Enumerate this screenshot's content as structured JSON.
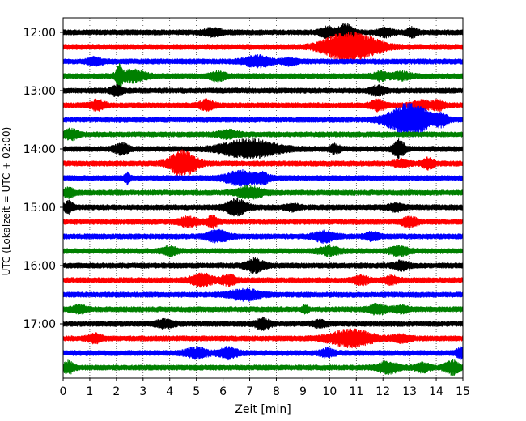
{
  "chart_data": {
    "type": "line",
    "title": "",
    "xlabel": "Zeit  [min]",
    "ylabel": "UTC (Lokalzeit = UTC + 02:00)",
    "xlim": [
      0,
      15
    ],
    "x_ticks": [
      "0",
      "1",
      "2",
      "3",
      "4",
      "5",
      "6",
      "7",
      "8",
      "9",
      "10",
      "11",
      "12",
      "13",
      "14",
      "15"
    ],
    "y_tick_labels": [
      "12:00",
      "13:00",
      "14:00",
      "15:00",
      "16:00",
      "17:00"
    ],
    "y_tick_rows": [
      0,
      4,
      8,
      12,
      16,
      20
    ],
    "grid": "vertical dotted at each minute",
    "trace_minutes": 15,
    "rows_per_hour": 4,
    "colors": [
      "#000000",
      "#ff0000",
      "#0000ff",
      "#008000"
    ],
    "traces": [
      {
        "start": "12:00",
        "color": "#000000",
        "events": [
          {
            "t": 5.6,
            "a": 0.35,
            "w": 0.25
          },
          {
            "t": 9.9,
            "a": 0.5,
            "w": 0.2
          },
          {
            "t": 10.6,
            "a": 0.9,
            "w": 0.2
          },
          {
            "t": 12.1,
            "a": 0.4,
            "w": 0.2
          },
          {
            "t": 13.1,
            "a": 0.45,
            "w": 0.15
          }
        ]
      },
      {
        "start": "12:15",
        "color": "#ff0000",
        "events": [
          {
            "t": 10.6,
            "a": 1.6,
            "w": 0.6
          },
          {
            "t": 11.6,
            "a": 0.5,
            "w": 0.4
          }
        ]
      },
      {
        "start": "12:30",
        "color": "#0000ff",
        "events": [
          {
            "t": 1.2,
            "a": 0.35,
            "w": 0.2
          },
          {
            "t": 7.3,
            "a": 0.55,
            "w": 0.35
          },
          {
            "t": 8.5,
            "a": 0.3,
            "w": 0.2
          }
        ]
      },
      {
        "start": "12:45",
        "color": "#008000",
        "events": [
          {
            "t": 2.1,
            "a": 1.3,
            "w": 0.08
          },
          {
            "t": 2.6,
            "a": 0.6,
            "w": 0.35
          },
          {
            "t": 5.8,
            "a": 0.45,
            "w": 0.2
          },
          {
            "t": 11.9,
            "a": 0.4,
            "w": 0.2
          },
          {
            "t": 12.7,
            "a": 0.35,
            "w": 0.25
          }
        ]
      },
      {
        "start": "13:00",
        "color": "#000000",
        "events": [
          {
            "t": 2.0,
            "a": 0.5,
            "w": 0.15
          },
          {
            "t": 11.8,
            "a": 0.45,
            "w": 0.2
          }
        ]
      },
      {
        "start": "13:15",
        "color": "#ff0000",
        "events": [
          {
            "t": 1.3,
            "a": 0.5,
            "w": 0.2
          },
          {
            "t": 5.4,
            "a": 0.5,
            "w": 0.2
          },
          {
            "t": 11.8,
            "a": 0.5,
            "w": 0.2
          },
          {
            "t": 13.5,
            "a": 0.4,
            "w": 0.3
          },
          {
            "t": 14.1,
            "a": 0.45,
            "w": 0.15
          }
        ]
      },
      {
        "start": "13:30",
        "color": "#0000ff",
        "events": [
          {
            "t": 13.0,
            "a": 1.9,
            "w": 0.55
          },
          {
            "t": 14.2,
            "a": 0.6,
            "w": 0.15
          }
        ]
      },
      {
        "start": "13:45",
        "color": "#008000",
        "events": [
          {
            "t": 0.3,
            "a": 0.5,
            "w": 0.2
          },
          {
            "t": 6.2,
            "a": 0.35,
            "w": 0.3
          }
        ]
      },
      {
        "start": "14:00",
        "color": "#000000",
        "events": [
          {
            "t": 2.2,
            "a": 0.55,
            "w": 0.2
          },
          {
            "t": 7.0,
            "a": 1.0,
            "w": 0.75
          },
          {
            "t": 10.2,
            "a": 0.4,
            "w": 0.15
          },
          {
            "t": 12.6,
            "a": 1.0,
            "w": 0.15
          }
        ]
      },
      {
        "start": "14:15",
        "color": "#ff0000",
        "events": [
          {
            "t": 4.5,
            "a": 1.45,
            "w": 0.35
          },
          {
            "t": 12.7,
            "a": 0.35,
            "w": 0.2
          },
          {
            "t": 13.7,
            "a": 0.55,
            "w": 0.15
          }
        ]
      },
      {
        "start": "14:30",
        "color": "#0000ff",
        "events": [
          {
            "t": 2.4,
            "a": 0.6,
            "w": 0.07
          },
          {
            "t": 6.7,
            "a": 0.75,
            "w": 0.45
          },
          {
            "t": 7.5,
            "a": 0.4,
            "w": 0.2
          }
        ]
      },
      {
        "start": "14:45",
        "color": "#008000",
        "events": [
          {
            "t": 0.2,
            "a": 0.45,
            "w": 0.15
          },
          {
            "t": 7.0,
            "a": 0.6,
            "w": 0.35
          }
        ]
      },
      {
        "start": "15:00",
        "color": "#000000",
        "events": [
          {
            "t": 0.2,
            "a": 0.6,
            "w": 0.12
          },
          {
            "t": 6.5,
            "a": 0.8,
            "w": 0.3
          },
          {
            "t": 8.6,
            "a": 0.3,
            "w": 0.2
          },
          {
            "t": 12.5,
            "a": 0.35,
            "w": 0.2
          }
        ]
      },
      {
        "start": "15:15",
        "color": "#ff0000",
        "events": [
          {
            "t": 4.7,
            "a": 0.45,
            "w": 0.25
          },
          {
            "t": 5.6,
            "a": 0.55,
            "w": 0.15
          },
          {
            "t": 13.0,
            "a": 0.5,
            "w": 0.2
          }
        ]
      },
      {
        "start": "15:30",
        "color": "#0000ff",
        "events": [
          {
            "t": 5.8,
            "a": 0.6,
            "w": 0.3
          },
          {
            "t": 9.8,
            "a": 0.55,
            "w": 0.3
          },
          {
            "t": 11.6,
            "a": 0.4,
            "w": 0.2
          }
        ]
      },
      {
        "start": "15:45",
        "color": "#008000",
        "events": [
          {
            "t": 4.0,
            "a": 0.4,
            "w": 0.2
          },
          {
            "t": 10.0,
            "a": 0.4,
            "w": 0.3
          },
          {
            "t": 12.6,
            "a": 0.45,
            "w": 0.25
          }
        ]
      },
      {
        "start": "16:00",
        "color": "#000000",
        "events": [
          {
            "t": 7.2,
            "a": 0.7,
            "w": 0.25
          },
          {
            "t": 12.7,
            "a": 0.45,
            "w": 0.2
          }
        ]
      },
      {
        "start": "16:15",
        "color": "#ff0000",
        "events": [
          {
            "t": 5.2,
            "a": 0.65,
            "w": 0.3
          },
          {
            "t": 6.2,
            "a": 0.5,
            "w": 0.2
          },
          {
            "t": 11.2,
            "a": 0.4,
            "w": 0.2
          },
          {
            "t": 12.3,
            "a": 0.35,
            "w": 0.2
          }
        ]
      },
      {
        "start": "16:30",
        "color": "#0000ff",
        "events": [
          {
            "t": 6.8,
            "a": 0.55,
            "w": 0.4
          }
        ]
      },
      {
        "start": "16:45",
        "color": "#008000",
        "events": [
          {
            "t": 0.6,
            "a": 0.35,
            "w": 0.2
          },
          {
            "t": 9.1,
            "a": 0.4,
            "w": 0.08
          },
          {
            "t": 11.8,
            "a": 0.5,
            "w": 0.25
          },
          {
            "t": 12.7,
            "a": 0.35,
            "w": 0.2
          }
        ]
      },
      {
        "start": "17:00",
        "color": "#000000",
        "events": [
          {
            "t": 3.8,
            "a": 0.35,
            "w": 0.25
          },
          {
            "t": 7.5,
            "a": 0.55,
            "w": 0.2
          },
          {
            "t": 9.6,
            "a": 0.3,
            "w": 0.2
          }
        ]
      },
      {
        "start": "17:15",
        "color": "#ff0000",
        "events": [
          {
            "t": 1.2,
            "a": 0.4,
            "w": 0.2
          },
          {
            "t": 10.8,
            "a": 0.9,
            "w": 0.6
          },
          {
            "t": 12.7,
            "a": 0.35,
            "w": 0.25
          }
        ]
      },
      {
        "start": "17:30",
        "color": "#0000ff",
        "events": [
          {
            "t": 5.0,
            "a": 0.5,
            "w": 0.3
          },
          {
            "t": 6.2,
            "a": 0.55,
            "w": 0.25
          },
          {
            "t": 9.9,
            "a": 0.35,
            "w": 0.2
          },
          {
            "t": 14.9,
            "a": 0.6,
            "w": 0.1
          }
        ]
      },
      {
        "start": "17:45",
        "color": "#008000",
        "events": [
          {
            "t": 0.2,
            "a": 0.6,
            "w": 0.15
          },
          {
            "t": 12.2,
            "a": 0.55,
            "w": 0.3
          },
          {
            "t": 13.5,
            "a": 0.4,
            "w": 0.2
          },
          {
            "t": 14.6,
            "a": 0.7,
            "w": 0.2
          }
        ]
      }
    ]
  }
}
